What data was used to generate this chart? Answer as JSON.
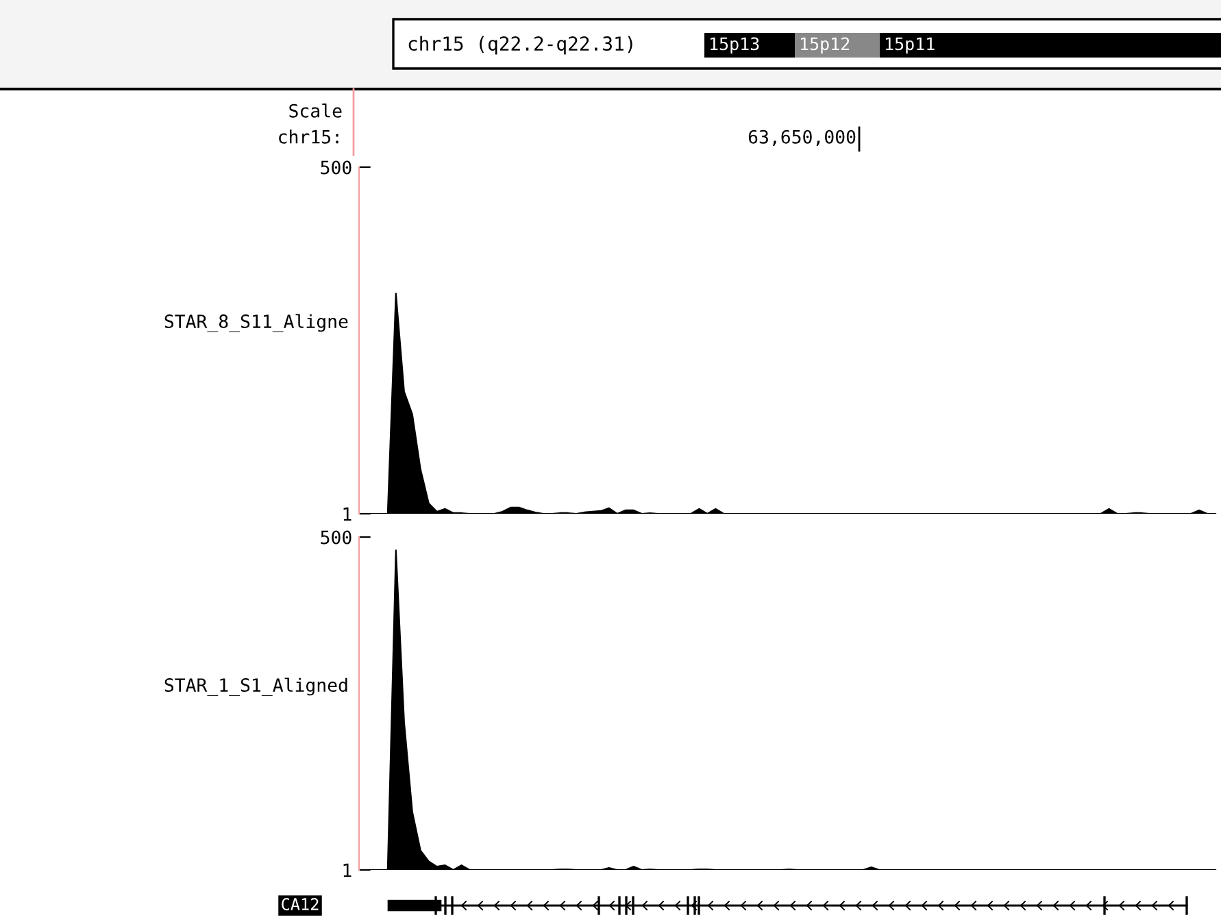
{
  "chart_data": [
    {
      "type": "other",
      "title": "chr15 (q22.2-q22.31)",
      "annotations": [
        "15p13",
        "15p12",
        "15p11",
        "Scale",
        "chr15:",
        "63,650,000"
      ]
    },
    {
      "type": "area",
      "ylabel": "STAR_8_S11_Aligne",
      "color": "#000000",
      "ylim": [
        1,
        500
      ],
      "yticks": [
        1,
        500
      ],
      "tick_labels": "y",
      "categories": [
        null,
        null,
        null,
        null,
        null,
        null,
        null,
        null,
        null,
        null,
        null,
        null,
        null,
        null,
        null,
        null,
        null,
        null,
        null,
        null,
        null,
        null,
        null,
        null,
        null,
        null,
        null,
        null,
        null,
        null,
        null,
        null,
        null,
        null,
        null,
        null,
        null,
        null,
        null,
        null,
        null,
        null,
        null,
        null,
        null,
        null,
        null,
        null,
        null,
        null,
        null,
        null,
        null,
        null,
        null,
        null,
        null,
        null,
        null,
        null,
        null,
        null,
        null,
        null,
        null,
        null,
        null,
        null,
        null,
        null,
        null,
        null,
        null,
        null,
        null,
        null,
        null,
        null,
        null,
        null,
        null,
        null,
        null,
        null,
        null,
        null,
        null,
        null,
        null,
        null,
        null,
        null,
        null,
        null,
        null,
        null,
        null,
        null,
        null,
        null,
        null,
        null,
        null,
        null,
        null
      ],
      "values": [
        1,
        1,
        1,
        1,
        318,
        177,
        144,
        65,
        16,
        4,
        8,
        2,
        2,
        1,
        1,
        1,
        1,
        4,
        10,
        10,
        6,
        3,
        1,
        1,
        2,
        2,
        1,
        3,
        4,
        5,
        9,
        1,
        6,
        6,
        1,
        2,
        1,
        1,
        1,
        1,
        1,
        8,
        1,
        8,
        1,
        1,
        1,
        1,
        1,
        1,
        1,
        1,
        1,
        1,
        1,
        1,
        1,
        1,
        1,
        1,
        1,
        1,
        1,
        1,
        1,
        1,
        1,
        1,
        1,
        1,
        1,
        1,
        1,
        1,
        1,
        1,
        1,
        1,
        1,
        1,
        1,
        1,
        1,
        1,
        1,
        1,
        1,
        1,
        1,
        1,
        1,
        8,
        1,
        1,
        2,
        2,
        1,
        1,
        1,
        1,
        1,
        1,
        6,
        1,
        1
      ]
    },
    {
      "type": "area",
      "ylabel": "STAR_1_S1_Aligned",
      "color": "#000000",
      "ylim": [
        1,
        500
      ],
      "yticks": [
        1,
        500
      ],
      "tick_labels": "y",
      "categories": [
        null,
        null,
        null,
        null,
        null,
        null,
        null,
        null,
        null,
        null,
        null,
        null,
        null,
        null,
        null,
        null,
        null,
        null,
        null,
        null,
        null,
        null,
        null,
        null,
        null,
        null,
        null,
        null,
        null,
        null,
        null,
        null,
        null,
        null,
        null,
        null,
        null,
        null,
        null,
        null,
        null,
        null,
        null,
        null,
        null,
        null,
        null,
        null,
        null,
        null,
        null,
        null,
        null,
        null,
        null,
        null,
        null,
        null,
        null,
        null,
        null,
        null,
        null,
        null,
        null,
        null,
        null,
        null,
        null,
        null,
        null,
        null,
        null,
        null,
        null,
        null,
        null,
        null,
        null,
        null,
        null,
        null,
        null,
        null,
        null,
        null,
        null,
        null,
        null,
        null,
        null,
        null,
        null,
        null,
        null,
        null,
        null,
        null,
        null,
        null,
        null,
        null,
        null,
        null,
        null
      ],
      "values": [
        1,
        1,
        1,
        1,
        480,
        223,
        88,
        30,
        14,
        6,
        8,
        1,
        8,
        1,
        1,
        1,
        1,
        1,
        1,
        1,
        1,
        1,
        1,
        1,
        2,
        2,
        1,
        1,
        1,
        1,
        4,
        1,
        1,
        6,
        1,
        2,
        1,
        1,
        1,
        1,
        1,
        2,
        2,
        1,
        1,
        1,
        1,
        1,
        1,
        1,
        1,
        1,
        2,
        1,
        1,
        1,
        1,
        1,
        1,
        1,
        1,
        1,
        5,
        1,
        1,
        1,
        1,
        1,
        1,
        1,
        1,
        1,
        1,
        1,
        1,
        1,
        1,
        1,
        1,
        1,
        1,
        1,
        1,
        1,
        1,
        1,
        1,
        1,
        1,
        1,
        1,
        1,
        1,
        1,
        1,
        1,
        1,
        1,
        1,
        1,
        1,
        1,
        1,
        1,
        1
      ]
    },
    {
      "type": "other",
      "annotations": [
        "CA12"
      ]
    }
  ]
}
